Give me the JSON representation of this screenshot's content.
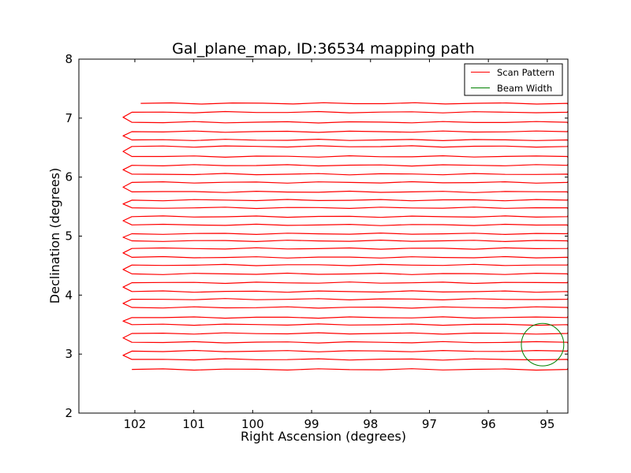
{
  "chart_data": {
    "type": "line",
    "title": "Gal_plane_map, ID:36534 mapping path",
    "xlabel": "Right Ascension (degrees)",
    "ylabel": "Declination (degrees)",
    "xlim": [
      102.95,
      94.65
    ],
    "ylim": [
      2,
      8
    ],
    "x_ticks": [
      102,
      101,
      100,
      99,
      98,
      97,
      96,
      95
    ],
    "y_ticks": [
      2,
      3,
      4,
      5,
      6,
      7,
      8
    ],
    "grid": false,
    "legend": {
      "placement": "top-right",
      "entries": [
        {
          "label": "Scan Pattern",
          "color": "#ff0000"
        },
        {
          "label": "Beam Width",
          "color": "#008000"
        }
      ]
    },
    "series": [
      {
        "name": "Scan Pattern",
        "color": "#ff0000",
        "scan_ra_start": 102.05,
        "scan_ra_end": 94.66,
        "turn_ra_left": 102.2,
        "turn_ra_right": 94.62,
        "first_ra_start": 101.9,
        "declinations": [
          7.25,
          7.1,
          6.93,
          6.77,
          6.63,
          6.52,
          6.35,
          6.2,
          6.05,
          5.91,
          5.75,
          5.61,
          5.48,
          5.33,
          5.19,
          5.04,
          4.92,
          4.79,
          4.64,
          4.51,
          4.36,
          4.21,
          4.06,
          3.93,
          3.79,
          3.62,
          3.5,
          3.35,
          3.2,
          3.05,
          2.91,
          2.74
        ]
      },
      {
        "name": "Beam Width",
        "color": "#008000",
        "center_ra": 95.08,
        "center_dec": 3.16,
        "radius_deg": 0.36
      }
    ]
  }
}
